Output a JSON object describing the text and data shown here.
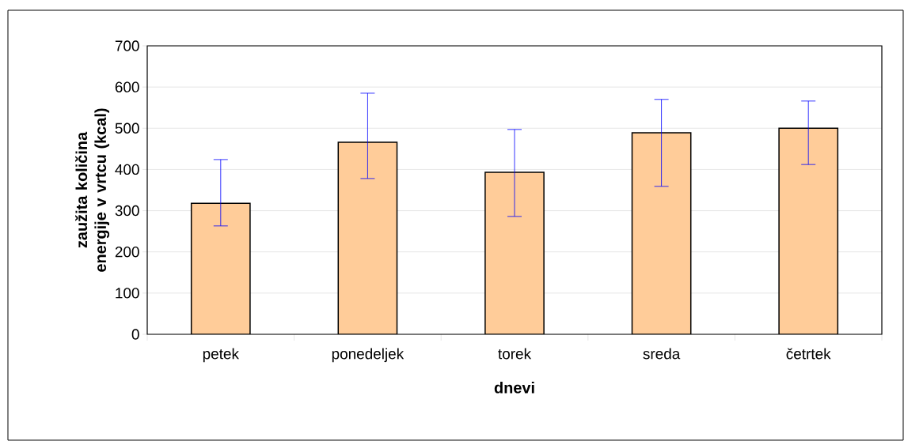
{
  "chart_data": {
    "type": "bar",
    "xlabel": "dnevi",
    "ylabel": "zaužita količina energije v vrtcu (kcal)",
    "categories": [
      "petek",
      "ponedeljek",
      "torek",
      "sreda",
      "četrtek"
    ],
    "values": [
      318,
      466,
      393,
      489,
      500
    ],
    "errors": [
      [
        263,
        424
      ],
      [
        378,
        585
      ],
      [
        286,
        497
      ],
      [
        359,
        570
      ],
      [
        412,
        566
      ]
    ],
    "color": "#ffcc99",
    "ylim": [
      0,
      700
    ],
    "yticks": [
      0,
      100,
      200,
      300,
      400,
      500,
      600,
      700
    ],
    "grid": "y"
  }
}
